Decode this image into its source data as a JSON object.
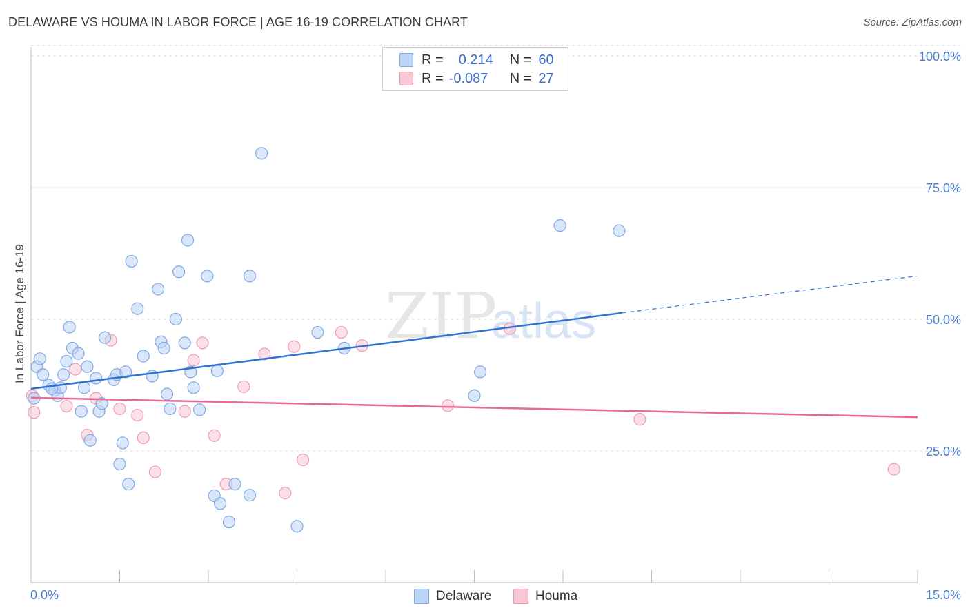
{
  "header": {
    "title": "DELAWARE VS HOUMA IN LABOR FORCE | AGE 16-19 CORRELATION CHART",
    "source": "Source: ZipAtlas.com"
  },
  "legend": {
    "delaware": {
      "r_label": "R =",
      "r_value": "0.214",
      "n_label": "N =",
      "n_value": "60"
    },
    "houma": {
      "r_label": "R =",
      "r_value": "-0.087",
      "n_label": "N =",
      "n_value": "27"
    }
  },
  "bottom_legend": {
    "delaware": "Delaware",
    "houma": "Houma"
  },
  "watermark": {
    "zip": "ZIP",
    "atlas": "atlas"
  },
  "colors": {
    "delaware_fill": "#bcd4f5",
    "delaware_stroke": "#7ea8e3",
    "delaware_line": "#2f72d2",
    "houma_fill": "#f9c6d4",
    "houma_stroke": "#ee9ab3",
    "houma_line": "#e46b93",
    "tick": "#4a7fd0",
    "grid": "#dcdcdc"
  },
  "chart_data": {
    "type": "scatter",
    "title": "DELAWARE VS HOUMA IN LABOR FORCE | AGE 16-19 CORRELATION CHART",
    "xlabel": "",
    "ylabel": "In Labor Force | Age 16-19",
    "xlim": [
      0,
      15
    ],
    "ylim": [
      0,
      102
    ],
    "x_tick_labels": [
      "0.0%",
      "15.0%"
    ],
    "y_ticks": [
      25,
      50,
      75,
      100
    ],
    "y_tick_labels": [
      "25.0%",
      "50.0%",
      "75.0%",
      "100.0%"
    ],
    "grid": true,
    "legend_position": "top-center",
    "series": [
      {
        "name": "Delaware",
        "r": 0.214,
        "n": 60,
        "trend": {
          "x0": 0,
          "y0": 36.8,
          "x1": 10.0,
          "y1": 51.2,
          "dashed_to_x": 15.0,
          "dashed_to_y": 58.2
        },
        "points": [
          [
            0.1,
            41
          ],
          [
            0.2,
            39.5
          ],
          [
            0.3,
            37.5
          ],
          [
            0.4,
            36.5
          ],
          [
            0.45,
            35.5
          ],
          [
            0.5,
            37
          ],
          [
            0.15,
            42.5
          ],
          [
            0.55,
            39.5
          ],
          [
            0.6,
            42
          ],
          [
            0.65,
            48.5
          ],
          [
            0.7,
            44.5
          ],
          [
            0.8,
            43.5
          ],
          [
            0.9,
            37
          ],
          [
            0.95,
            41
          ],
          [
            1.1,
            38.8
          ],
          [
            0.85,
            32.5
          ],
          [
            1.15,
            32.5
          ],
          [
            1.0,
            27
          ],
          [
            1.2,
            34
          ],
          [
            1.25,
            46.5
          ],
          [
            1.4,
            38.5
          ],
          [
            1.45,
            39.5
          ],
          [
            1.6,
            40
          ],
          [
            1.55,
            26.5
          ],
          [
            1.5,
            22.5
          ],
          [
            1.65,
            18.7
          ],
          [
            1.7,
            61
          ],
          [
            1.8,
            52
          ],
          [
            1.9,
            43
          ],
          [
            2.05,
            39.2
          ],
          [
            2.15,
            55.7
          ],
          [
            2.2,
            45.7
          ],
          [
            2.25,
            44.5
          ],
          [
            2.3,
            35.8
          ],
          [
            2.35,
            33
          ],
          [
            2.45,
            50
          ],
          [
            2.5,
            59
          ],
          [
            2.6,
            45.5
          ],
          [
            2.65,
            65
          ],
          [
            2.7,
            40
          ],
          [
            2.75,
            37
          ],
          [
            2.85,
            32.8
          ],
          [
            2.98,
            58.2
          ],
          [
            3.1,
            16.5
          ],
          [
            3.15,
            40.2
          ],
          [
            3.2,
            15
          ],
          [
            3.35,
            11.5
          ],
          [
            3.45,
            18.7
          ],
          [
            3.7,
            16.6
          ],
          [
            3.7,
            58.2
          ],
          [
            3.9,
            81.5
          ],
          [
            4.5,
            10.7
          ],
          [
            4.85,
            47.5
          ],
          [
            5.3,
            44.5
          ],
          [
            7.5,
            35.5
          ],
          [
            7.6,
            40
          ],
          [
            8.95,
            67.8
          ],
          [
            9.95,
            66.8
          ],
          [
            0.05,
            35
          ],
          [
            0.35,
            36.8
          ]
        ]
      },
      {
        "name": "Houma",
        "r": -0.087,
        "n": 27,
        "trend": {
          "x0": 0,
          "y0": 35.1,
          "x1": 15.0,
          "y1": 31.4
        },
        "points": [
          [
            0.05,
            32.3
          ],
          [
            0.6,
            33.5
          ],
          [
            0.75,
            40.5
          ],
          [
            0.95,
            28
          ],
          [
            1.1,
            35
          ],
          [
            1.35,
            46
          ],
          [
            1.5,
            33
          ],
          [
            1.8,
            31.8
          ],
          [
            1.9,
            27.5
          ],
          [
            2.1,
            21
          ],
          [
            2.6,
            32.5
          ],
          [
            2.75,
            42.2
          ],
          [
            2.9,
            45.5
          ],
          [
            3.1,
            27.9
          ],
          [
            3.3,
            18.7
          ],
          [
            3.6,
            37.2
          ],
          [
            3.95,
            43.4
          ],
          [
            4.3,
            17
          ],
          [
            4.45,
            44.8
          ],
          [
            4.6,
            23.3
          ],
          [
            5.25,
            47.5
          ],
          [
            5.6,
            45
          ],
          [
            7.05,
            33.6
          ],
          [
            8.1,
            48.2
          ],
          [
            10.3,
            31
          ],
          [
            14.6,
            21.5
          ],
          [
            0.02,
            35.5
          ]
        ]
      }
    ]
  }
}
